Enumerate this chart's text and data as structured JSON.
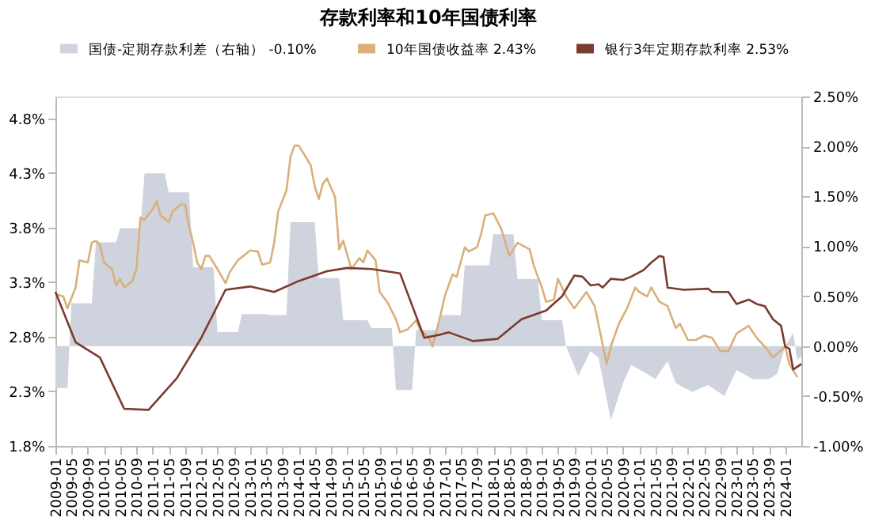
{
  "chart_data": {
    "type": "line",
    "title": "存款利率和10年国债利率",
    "xlim": [
      "2009-01",
      "2024-05"
    ],
    "xticks": [
      "2009-01",
      "2009-05",
      "2009-09",
      "2010-01",
      "2010-05",
      "2010-09",
      "2011-01",
      "2011-05",
      "2011-09",
      "2012-01",
      "2012-05",
      "2012-09",
      "2013-01",
      "2013-05",
      "2013-09",
      "2014-01",
      "2014-05",
      "2014-09",
      "2015-01",
      "2015-05",
      "2015-09",
      "2016-01",
      "2016-05",
      "2016-09",
      "2017-01",
      "2017-05",
      "2017-09",
      "2018-01",
      "2018-05",
      "2018-09",
      "2019-01",
      "2019-05",
      "2019-09",
      "2020-01",
      "2020-05",
      "2020-09",
      "2021-01",
      "2021-05",
      "2021-09",
      "2022-01",
      "2022-05",
      "2022-09",
      "2023-01",
      "2023-05",
      "2023-09",
      "2024-01"
    ],
    "ylim": [
      1.8,
      5.0
    ],
    "yticks": [
      {
        "value": 1.8,
        "label": "1.8%"
      },
      {
        "value": 2.3,
        "label": "2.3%"
      },
      {
        "value": 2.8,
        "label": "2.8%"
      },
      {
        "value": 3.3,
        "label": "3.3%"
      },
      {
        "value": 3.8,
        "label": "3.8%"
      },
      {
        "value": 4.3,
        "label": "4.3%"
      },
      {
        "value": 4.8,
        "label": "4.8%"
      }
    ],
    "y2lim": [
      -1.0,
      2.5
    ],
    "y2ticks": [
      {
        "value": -1.0,
        "label": "-1.00%"
      },
      {
        "value": -0.5,
        "label": "-0.50%"
      },
      {
        "value": 0.0,
        "label": "0.00%"
      },
      {
        "value": 0.5,
        "label": "0.50%"
      },
      {
        "value": 1.0,
        "label": "1.00%"
      },
      {
        "value": 1.5,
        "label": "1.50%"
      },
      {
        "value": 2.0,
        "label": "2.00%"
      },
      {
        "value": 2.5,
        "label": "2.50%"
      }
    ],
    "legend": "top",
    "grid": false,
    "series": [
      {
        "name": "国债-定期存款利差（右轴）   -0.10%",
        "type": "area",
        "axis": "y2",
        "color": "#cfd3de",
        "x": [
          "2009-01",
          "2009-04",
          "2009-05",
          "2009-10",
          "2009-11",
          "2010-04",
          "2010-05",
          "2010-10",
          "2010-11",
          "2011-04",
          "2011-05",
          "2011-10",
          "2011-11",
          "2012-04",
          "2012-05",
          "2012-10",
          "2012-11",
          "2013-05",
          "2013-06",
          "2013-10",
          "2013-11",
          "2014-05",
          "2014-06",
          "2014-11",
          "2014-12",
          "2015-06",
          "2015-07",
          "2015-12",
          "2016-01",
          "2016-05",
          "2016-06",
          "2016-11",
          "2016-12",
          "2017-05",
          "2017-06",
          "2017-12",
          "2018-01",
          "2018-06",
          "2018-07",
          "2018-12",
          "2019-01",
          "2019-06",
          "2019-07",
          "2019-10",
          "2020-01",
          "2020-03",
          "2020-06",
          "2020-09",
          "2020-11",
          "2021-03",
          "2021-05",
          "2021-08",
          "2021-10",
          "2022-02",
          "2022-06",
          "2022-10",
          "2023-01",
          "2023-05",
          "2023-09",
          "2023-11",
          "2024-01",
          "2024-03",
          "2024-04",
          "2024-05"
        ],
        "values": [
          -0.42,
          -0.42,
          0.43,
          0.43,
          1.04,
          1.04,
          1.18,
          1.18,
          1.73,
          1.73,
          1.54,
          1.54,
          0.79,
          0.79,
          0.14,
          0.14,
          0.32,
          0.32,
          0.31,
          0.31,
          1.24,
          1.24,
          0.68,
          0.68,
          0.26,
          0.26,
          0.18,
          0.18,
          -0.44,
          -0.44,
          0.16,
          0.16,
          0.31,
          0.31,
          0.81,
          0.81,
          1.12,
          1.12,
          0.67,
          0.67,
          0.26,
          0.26,
          0.0,
          -0.3,
          -0.05,
          -0.12,
          -0.74,
          -0.37,
          -0.19,
          -0.28,
          -0.33,
          -0.15,
          -0.37,
          -0.46,
          -0.39,
          -0.5,
          -0.24,
          -0.33,
          -0.33,
          -0.28,
          0.0,
          0.13,
          -0.14,
          -0.1
        ]
      },
      {
        "name": "10年国债收益率   2.43%",
        "color": "#d9b07a",
        "x": [
          "2009-01",
          "2009-03",
          "2009-04",
          "2009-06",
          "2009-07",
          "2009-09",
          "2009-10",
          "2009-11",
          "2009-12",
          "2010-01",
          "2010-03",
          "2010-04",
          "2010-05",
          "2010-06",
          "2010-08",
          "2010-09",
          "2010-10",
          "2010-11",
          "2011-01",
          "2011-02",
          "2011-03",
          "2011-05",
          "2011-06",
          "2011-08",
          "2011-09",
          "2011-10",
          "2011-11",
          "2011-12",
          "2012-01",
          "2012-02",
          "2012-03",
          "2012-05",
          "2012-07",
          "2012-08",
          "2012-10",
          "2013-01",
          "2013-03",
          "2013-04",
          "2013-06",
          "2013-07",
          "2013-08",
          "2013-10",
          "2013-11",
          "2013-12",
          "2014-01",
          "2014-02",
          "2014-04",
          "2014-05",
          "2014-06",
          "2014-07",
          "2014-08",
          "2014-10",
          "2014-11",
          "2014-12",
          "2015-02",
          "2015-04",
          "2015-05",
          "2015-06",
          "2015-08",
          "2015-09",
          "2015-11",
          "2016-01",
          "2016-02",
          "2016-04",
          "2016-06",
          "2016-07",
          "2016-09",
          "2016-10",
          "2016-12",
          "2017-01",
          "2017-03",
          "2017-04",
          "2017-06",
          "2017-07",
          "2017-09",
          "2017-10",
          "2017-11",
          "2018-01",
          "2018-03",
          "2018-05",
          "2018-07",
          "2018-10",
          "2018-11",
          "2019-01",
          "2019-02",
          "2019-04",
          "2019-05",
          "2019-07",
          "2019-09",
          "2019-12",
          "2020-02",
          "2020-05",
          "2020-06",
          "2020-08",
          "2020-10",
          "2020-12",
          "2021-01",
          "2021-03",
          "2021-04",
          "2021-06",
          "2021-08",
          "2021-10",
          "2021-11",
          "2022-01",
          "2022-03",
          "2022-05",
          "2022-07",
          "2022-09",
          "2022-11",
          "2023-01",
          "2023-04",
          "2023-06",
          "2023-08",
          "2023-10",
          "2024-01",
          "2024-02",
          "2024-04"
        ],
        "values": [
          3.19,
          3.17,
          3.06,
          3.25,
          3.5,
          3.48,
          3.66,
          3.68,
          3.64,
          3.48,
          3.42,
          3.27,
          3.33,
          3.25,
          3.31,
          3.42,
          3.89,
          3.87,
          3.97,
          4.04,
          3.91,
          3.85,
          3.95,
          4.01,
          4.01,
          3.81,
          3.66,
          3.48,
          3.42,
          3.54,
          3.54,
          3.42,
          3.29,
          3.39,
          3.5,
          3.59,
          3.58,
          3.46,
          3.48,
          3.66,
          3.95,
          4.14,
          4.45,
          4.55,
          4.55,
          4.49,
          4.37,
          4.18,
          4.06,
          4.2,
          4.25,
          4.08,
          3.6,
          3.68,
          3.42,
          3.52,
          3.48,
          3.59,
          3.5,
          3.21,
          3.11,
          2.96,
          2.84,
          2.87,
          2.95,
          2.86,
          2.8,
          2.71,
          3.0,
          3.17,
          3.37,
          3.35,
          3.62,
          3.58,
          3.62,
          3.74,
          3.91,
          3.93,
          3.79,
          3.54,
          3.66,
          3.6,
          3.45,
          3.25,
          3.12,
          3.14,
          3.33,
          3.17,
          3.06,
          3.21,
          3.08,
          2.55,
          2.71,
          2.92,
          3.06,
          3.25,
          3.21,
          3.17,
          3.25,
          3.12,
          3.08,
          2.88,
          2.92,
          2.77,
          2.77,
          2.81,
          2.79,
          2.67,
          2.67,
          2.83,
          2.9,
          2.79,
          2.71,
          2.61,
          2.71,
          2.55,
          2.43
        ]
      },
      {
        "name": "银行3年定期存款利率   2.53%",
        "color": "#7b3b2e",
        "x": [
          "2009-01",
          "2009-06",
          "2009-12",
          "2010-06",
          "2010-12",
          "2011-07",
          "2012-01",
          "2012-07",
          "2013-01",
          "2013-07",
          "2014-01",
          "2014-08",
          "2015-01",
          "2015-07",
          "2016-02",
          "2016-08",
          "2016-12",
          "2017-02",
          "2017-08",
          "2018-02",
          "2018-08",
          "2019-02",
          "2019-06",
          "2019-09",
          "2019-11",
          "2020-01",
          "2020-03",
          "2020-04",
          "2020-06",
          "2020-09",
          "2020-11",
          "2021-02",
          "2021-04",
          "2021-06",
          "2021-07",
          "2021-08",
          "2021-12",
          "2022-06",
          "2022-07",
          "2022-11",
          "2023-01",
          "2023-04",
          "2023-06",
          "2023-08",
          "2023-10",
          "2023-12",
          "2024-01",
          "2024-02",
          "2024-03",
          "2024-05"
        ],
        "values": [
          3.21,
          2.75,
          2.61,
          2.14,
          2.13,
          2.42,
          2.79,
          3.23,
          3.26,
          3.21,
          3.31,
          3.4,
          3.43,
          3.42,
          3.38,
          2.79,
          2.82,
          2.84,
          2.76,
          2.78,
          2.96,
          3.04,
          3.17,
          3.36,
          3.35,
          3.27,
          3.28,
          3.25,
          3.33,
          3.32,
          3.35,
          3.41,
          3.48,
          3.54,
          3.53,
          3.25,
          3.23,
          3.24,
          3.21,
          3.21,
          3.1,
          3.14,
          3.1,
          3.08,
          2.96,
          2.9,
          2.71,
          2.69,
          2.5,
          2.55
        ]
      }
    ]
  }
}
